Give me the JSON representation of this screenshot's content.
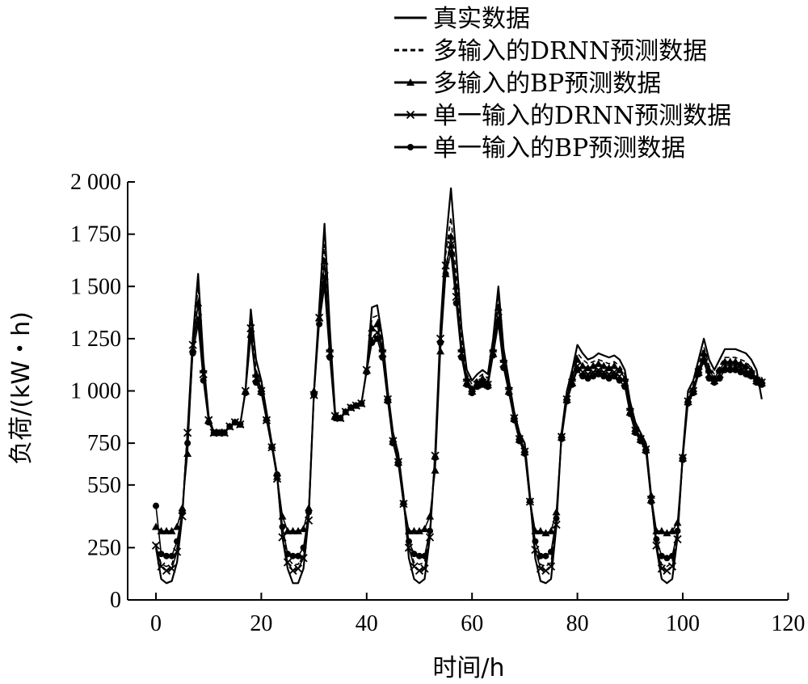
{
  "chart_data": {
    "type": "line",
    "xlabel": "时间/h",
    "ylabel": "负荷/(kW・h)",
    "xlim": [
      -5,
      120
    ],
    "ylim": [
      0,
      2000
    ],
    "xticks": [
      0,
      20,
      40,
      60,
      80,
      100,
      120
    ],
    "yticks": [
      0,
      250,
      550,
      750,
      1000,
      1250,
      1500,
      1750,
      2000
    ],
    "x_tick_labels": [
      "0",
      "20",
      "40",
      "60",
      "80",
      "100",
      "120"
    ],
    "y_tick_labels": [
      "0",
      "250",
      "550",
      "750",
      "1 000",
      "1 250",
      "1 500",
      "1 750",
      "2 000"
    ],
    "grid": false,
    "legend_position": "top-right",
    "x": [
      0,
      1,
      2,
      3,
      4,
      5,
      6,
      7,
      8,
      9,
      10,
      11,
      12,
      13,
      14,
      15,
      16,
      17,
      18,
      19,
      20,
      21,
      22,
      23,
      24,
      25,
      26,
      27,
      28,
      29,
      30,
      31,
      32,
      33,
      34,
      35,
      36,
      37,
      38,
      39,
      40,
      41,
      42,
      43,
      44,
      45,
      46,
      47,
      48,
      49,
      50,
      51,
      52,
      53,
      54,
      55,
      56,
      57,
      58,
      59,
      60,
      61,
      62,
      63,
      64,
      65,
      66,
      67,
      68,
      69,
      70,
      71,
      72,
      73,
      74,
      75,
      76,
      77,
      78,
      79,
      80,
      81,
      82,
      83,
      84,
      85,
      86,
      87,
      88,
      89,
      90,
      91,
      92,
      93,
      94,
      95,
      96,
      97,
      98,
      99,
      100,
      101,
      102,
      103,
      104,
      105,
      106,
      107,
      108,
      109,
      110,
      111,
      112,
      113,
      114,
      115
    ],
    "series": [
      {
        "name": "真实数据",
        "marker": "none",
        "dash": "solid",
        "values": [
          250,
          100,
          80,
          90,
          180,
          400,
          800,
          1250,
          1560,
          1150,
          880,
          800,
          800,
          800,
          830,
          850,
          840,
          1000,
          1390,
          1150,
          1050,
          900,
          750,
          600,
          300,
          150,
          80,
          80,
          150,
          400,
          1000,
          1400,
          1800,
          1300,
          900,
          870,
          900,
          920,
          930,
          940,
          1100,
          1400,
          1410,
          1250,
          1000,
          800,
          700,
          500,
          200,
          100,
          80,
          100,
          300,
          700,
          1300,
          1700,
          1970,
          1650,
          1300,
          1100,
          1050,
          1080,
          1100,
          1080,
          1250,
          1500,
          1200,
          1050,
          900,
          800,
          750,
          500,
          200,
          90,
          80,
          100,
          350,
          800,
          1000,
          1100,
          1220,
          1180,
          1150,
          1160,
          1180,
          1170,
          1160,
          1170,
          1150,
          1100,
          950,
          850,
          800,
          750,
          500,
          250,
          100,
          80,
          100,
          300,
          700,
          1000,
          1050,
          1150,
          1250,
          1150,
          1100,
          1150,
          1200,
          1200,
          1200,
          1190,
          1180,
          1150,
          1100,
          960
        ]
      },
      {
        "name": "多输入的DRNN预测数据",
        "marker": "none",
        "dash": "dashed",
        "values": [
          270,
          170,
          160,
          170,
          250,
          430,
          820,
          1230,
          1500,
          1100,
          860,
          800,
          800,
          800,
          830,
          850,
          840,
          1010,
          1340,
          1100,
          1030,
          880,
          740,
          590,
          330,
          200,
          170,
          170,
          220,
          430,
          1000,
          1370,
          1700,
          1250,
          890,
          870,
          900,
          920,
          930,
          940,
          1100,
          1350,
          1360,
          1220,
          980,
          780,
          680,
          480,
          250,
          180,
          170,
          180,
          340,
          710,
          1270,
          1650,
          1830,
          1550,
          1250,
          1080,
          1030,
          1060,
          1080,
          1060,
          1230,
          1450,
          1180,
          1040,
          890,
          790,
          740,
          500,
          240,
          170,
          160,
          180,
          380,
          800,
          990,
          1080,
          1180,
          1150,
          1130,
          1140,
          1150,
          1140,
          1130,
          1140,
          1120,
          1080,
          930,
          830,
          790,
          740,
          500,
          270,
          170,
          160,
          180,
          330,
          700,
          980,
          1030,
          1120,
          1210,
          1120,
          1080,
          1120,
          1160,
          1160,
          1160,
          1150,
          1140,
          1110,
          1070,
          1050
        ]
      },
      {
        "name": "多输入的BP预测数据",
        "marker": "triangle",
        "dash": "solid",
        "values": [
          350,
          330,
          330,
          330,
          350,
          440,
          700,
          1200,
          1420,
          1100,
          860,
          800,
          800,
          800,
          830,
          850,
          840,
          1000,
          1270,
          1080,
          1010,
          870,
          740,
          590,
          400,
          330,
          330,
          330,
          340,
          440,
          1000,
          1350,
          1620,
          1200,
          880,
          870,
          900,
          920,
          930,
          940,
          1100,
          1300,
          1320,
          1200,
          970,
          770,
          670,
          470,
          330,
          330,
          330,
          340,
          400,
          620,
          1190,
          1560,
          1740,
          1500,
          1200,
          1060,
          1010,
          1040,
          1060,
          1040,
          1200,
          1400,
          1150,
          1020,
          880,
          780,
          720,
          480,
          330,
          330,
          320,
          330,
          420,
          790,
          970,
          1060,
          1150,
          1120,
          1110,
          1120,
          1130,
          1120,
          1110,
          1120,
          1100,
          1060,
          920,
          820,
          780,
          730,
          500,
          330,
          330,
          320,
          330,
          370,
          690,
          960,
          1010,
          1100,
          1180,
          1100,
          1060,
          1100,
          1140,
          1140,
          1140,
          1130,
          1120,
          1100,
          1060,
          1050
        ]
      },
      {
        "name": "单一输入的DRNN预测数据",
        "marker": "cross",
        "dash": "solid",
        "values": [
          260,
          160,
          140,
          150,
          230,
          400,
          800,
          1220,
          1350,
          1080,
          860,
          800,
          800,
          800,
          830,
          850,
          840,
          1000,
          1300,
          1060,
          1000,
          860,
          730,
          580,
          300,
          180,
          140,
          150,
          200,
          380,
          980,
          1350,
          1550,
          1180,
          880,
          870,
          900,
          920,
          930,
          940,
          1100,
          1250,
          1280,
          1180,
          960,
          760,
          660,
          460,
          250,
          160,
          140,
          150,
          300,
          690,
          1250,
          1600,
          1700,
          1450,
          1180,
          1040,
          1000,
          1030,
          1040,
          1030,
          1180,
          1350,
          1130,
          1000,
          870,
          770,
          710,
          470,
          240,
          150,
          140,
          160,
          360,
          780,
          960,
          1040,
          1120,
          1090,
          1080,
          1090,
          1100,
          1090,
          1080,
          1090,
          1070,
          1040,
          900,
          810,
          770,
          720,
          480,
          260,
          150,
          140,
          160,
          290,
          680,
          950,
          1000,
          1090,
          1160,
          1080,
          1050,
          1080,
          1120,
          1120,
          1120,
          1110,
          1100,
          1080,
          1050,
          1040
        ]
      },
      {
        "name": "单一输入的BP预测数据",
        "marker": "circle",
        "dash": "solid",
        "values": [
          450,
          220,
          210,
          210,
          280,
          420,
          750,
          1180,
          1320,
          1050,
          850,
          800,
          800,
          800,
          830,
          850,
          840,
          990,
          1260,
          1040,
          990,
          860,
          730,
          600,
          350,
          220,
          210,
          210,
          250,
          420,
          980,
          1320,
          1500,
          1160,
          870,
          870,
          900,
          920,
          930,
          940,
          1090,
          1230,
          1250,
          1160,
          950,
          750,
          650,
          460,
          280,
          220,
          210,
          210,
          330,
          680,
          1230,
          1560,
          1660,
          1420,
          1160,
          1030,
          990,
          1020,
          1030,
          1020,
          1170,
          1320,
          1110,
          990,
          860,
          760,
          700,
          470,
          280,
          210,
          210,
          230,
          390,
          770,
          950,
          1030,
          1100,
          1070,
          1060,
          1070,
          1080,
          1070,
          1060,
          1070,
          1050,
          1020,
          890,
          800,
          760,
          710,
          470,
          290,
          210,
          200,
          210,
          330,
          670,
          940,
          990,
          1080,
          1140,
          1060,
          1040,
          1060,
          1100,
          1100,
          1100,
          1090,
          1080,
          1070,
          1040,
          1030
        ]
      }
    ]
  }
}
